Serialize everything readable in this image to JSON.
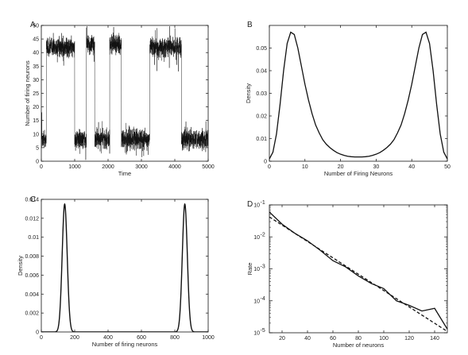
{
  "chart_data": [
    {
      "panel": "A",
      "type": "line",
      "xlabel": "Time",
      "ylabel": "Number of firing neurons",
      "xlim": [
        0,
        5000
      ],
      "ylim": [
        0,
        50
      ],
      "xticks": [
        0,
        1000,
        2000,
        3000,
        4000,
        5000
      ],
      "yticks": [
        0,
        5,
        10,
        15,
        20,
        25,
        30,
        35,
        40,
        45,
        50
      ],
      "states": [
        {
          "x0": 0,
          "x1": 150,
          "level": 8
        },
        {
          "x0": 150,
          "x1": 1000,
          "level": 42
        },
        {
          "x0": 1000,
          "x1": 1350,
          "level": 8
        },
        {
          "x0": 1350,
          "x1": 1600,
          "level": 43
        },
        {
          "x0": 1600,
          "x1": 2050,
          "level": 8
        },
        {
          "x0": 2050,
          "x1": 2400,
          "level": 43
        },
        {
          "x0": 2400,
          "x1": 3150,
          "level": 8
        },
        {
          "x0": 3150,
          "x1": 3250,
          "level": 8
        },
        {
          "x0": 3250,
          "x1": 4200,
          "level": 42
        },
        {
          "x0": 4200,
          "x1": 5000,
          "level": 8
        }
      ],
      "noise": 5
    },
    {
      "panel": "B",
      "type": "line",
      "xlabel": "Number of Firing Neurons",
      "ylabel": "Density",
      "xlim": [
        0,
        50
      ],
      "ylim": [
        0,
        0.06
      ],
      "xticks": [
        0,
        10,
        20,
        30,
        40,
        50
      ],
      "yticks": [
        0,
        0.01,
        0.02,
        0.03,
        0.04,
        0.05
      ],
      "series": [
        {
          "x": [
            0,
            1,
            2,
            3,
            4,
            5,
            6,
            7,
            8,
            9,
            10,
            11,
            12,
            13,
            14,
            15,
            16,
            17,
            18,
            19,
            20,
            21,
            22,
            23,
            24,
            25,
            26,
            27,
            28,
            29,
            30,
            31,
            32,
            33,
            34,
            35,
            36,
            37,
            38,
            39,
            40,
            41,
            42,
            43,
            44,
            45,
            46,
            47,
            48,
            49,
            50
          ],
          "y": [
            0.001,
            0.004,
            0.012,
            0.025,
            0.04,
            0.052,
            0.057,
            0.056,
            0.05,
            0.042,
            0.034,
            0.027,
            0.021,
            0.016,
            0.0125,
            0.0095,
            0.0075,
            0.006,
            0.0048,
            0.0038,
            0.0031,
            0.0026,
            0.0022,
            0.002,
            0.0019,
            0.0019,
            0.0019,
            0.002,
            0.0022,
            0.0026,
            0.0031,
            0.0038,
            0.0048,
            0.006,
            0.0075,
            0.0095,
            0.0125,
            0.016,
            0.021,
            0.027,
            0.034,
            0.042,
            0.05,
            0.056,
            0.057,
            0.052,
            0.04,
            0.025,
            0.012,
            0.004,
            0.001
          ]
        }
      ]
    },
    {
      "panel": "C",
      "type": "line",
      "xlabel": "Number of firing neurons",
      "ylabel": "Density",
      "xlim": [
        0,
        1000
      ],
      "ylim": [
        0,
        0.014
      ],
      "xticks": [
        0,
        200,
        400,
        600,
        800,
        1000
      ],
      "yticks": [
        0,
        0.002,
        0.004,
        0.006,
        0.008,
        0.01,
        0.012,
        0.014
      ],
      "series": [
        {
          "peaks": [
            {
              "mu": 140,
              "sigma": 15,
              "height": 0.0135
            },
            {
              "mu": 860,
              "sigma": 15,
              "height": 0.0135
            }
          ]
        }
      ]
    },
    {
      "panel": "D",
      "type": "line",
      "log_y": true,
      "xlabel": "Number of neurons",
      "ylabel": "Rate",
      "xlim": [
        10,
        150
      ],
      "ylim": [
        1e-05,
        0.1
      ],
      "xticks": [
        20,
        40,
        60,
        80,
        100,
        120,
        140
      ],
      "ytick_exponents": [
        -5,
        -4,
        -3,
        -2,
        -1
      ],
      "series": [
        {
          "style": "solid",
          "x": [
            10,
            20,
            30,
            40,
            50,
            60,
            70,
            80,
            90,
            100,
            110,
            120,
            130,
            140,
            150
          ],
          "y": [
            0.06,
            0.025,
            0.013,
            0.0075,
            0.0038,
            0.0018,
            0.00115,
            0.0006,
            0.00035,
            0.00024,
            0.0001,
            7.2e-05,
            4.8e-05,
            5.8e-05,
            1.3e-05
          ]
        },
        {
          "style": "dashed",
          "x": [
            10,
            150
          ],
          "y": [
            0.042,
            1.1e-05
          ]
        }
      ]
    }
  ]
}
